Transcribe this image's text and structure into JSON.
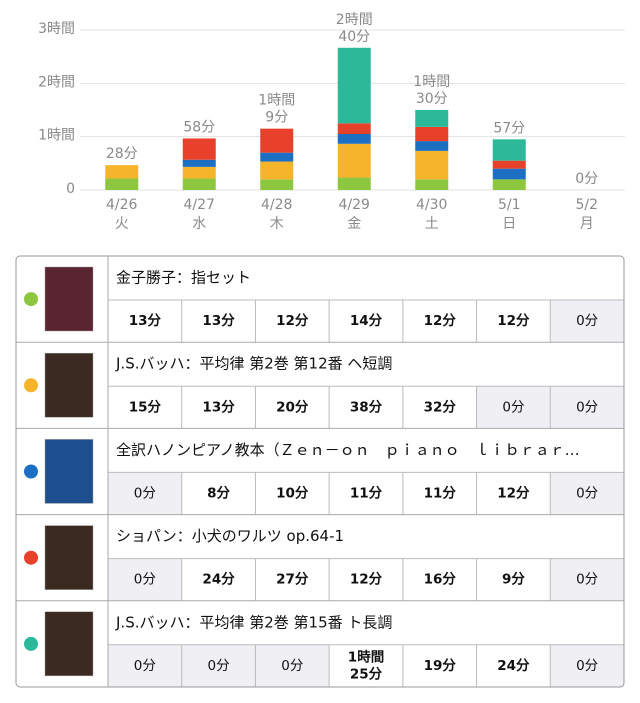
{
  "chart_data": {
    "type": "stacked-bar",
    "categories": [
      "4/26",
      "4/27",
      "4/28",
      "4/29",
      "4/30",
      "5/1",
      "5/2"
    ],
    "weekdays": [
      "火",
      "水",
      "木",
      "金",
      "土",
      "日",
      "月"
    ],
    "ylim": [
      0,
      180
    ],
    "yticks": [
      0,
      {
        "value": 60,
        "label": "1時間"
      },
      {
        "value": 120,
        "label": "2時間"
      },
      {
        "value": 180,
        "label": "3時間"
      }
    ],
    "grid": true,
    "total_labels": [
      "28分",
      "58分",
      [
        "1時間",
        "9分"
      ],
      [
        "2時間",
        "40分"
      ],
      [
        "1時間",
        "30分"
      ],
      "57分",
      "0分"
    ],
    "series": [
      {
        "name": "金子勝子：指セット",
        "color": "#8dc63f",
        "values": [
          13,
          13,
          12,
          14,
          12,
          12,
          0
        ],
        "value_labels": [
          "13分",
          "13分",
          "12分",
          "14分",
          "12分",
          "12分",
          "0分"
        ]
      },
      {
        "name": "J.S.バッハ：平均律 第2巻 第12番 ヘ短調",
        "color": "#f6b42a",
        "values": [
          15,
          13,
          20,
          38,
          32,
          0,
          0
        ],
        "value_labels": [
          "15分",
          "13分",
          "20分",
          "38分",
          "32分",
          "0分",
          "0分"
        ]
      },
      {
        "name": "全訳ハノンピアノ教本（Ｚｅｎ－ｏｎ　ｐｉａｎｏ　ｌｉｂｒａｒ…",
        "color": "#1d6fc4",
        "values": [
          0,
          8,
          10,
          11,
          11,
          12,
          0
        ],
        "value_labels": [
          "0分",
          "8分",
          "10分",
          "11分",
          "11分",
          "12分",
          "0分"
        ]
      },
      {
        "name": "ショパン：小犬のワルツ op.64-1",
        "color": "#e8412b",
        "values": [
          0,
          24,
          27,
          12,
          16,
          9,
          0
        ],
        "value_labels": [
          "0分",
          "24分",
          "27分",
          "12分",
          "16分",
          "9分",
          "0分"
        ]
      },
      {
        "name": "J.S.バッハ：平均律 第2巻 第15番 ト長調",
        "color": "#2cb99a",
        "values": [
          0,
          0,
          0,
          85,
          19,
          24,
          0
        ],
        "value_labels": [
          "0分",
          "0分",
          "0分",
          [
            "1時間",
            "25分"
          ],
          "19分",
          "24分",
          "0分"
        ]
      }
    ]
  }
}
